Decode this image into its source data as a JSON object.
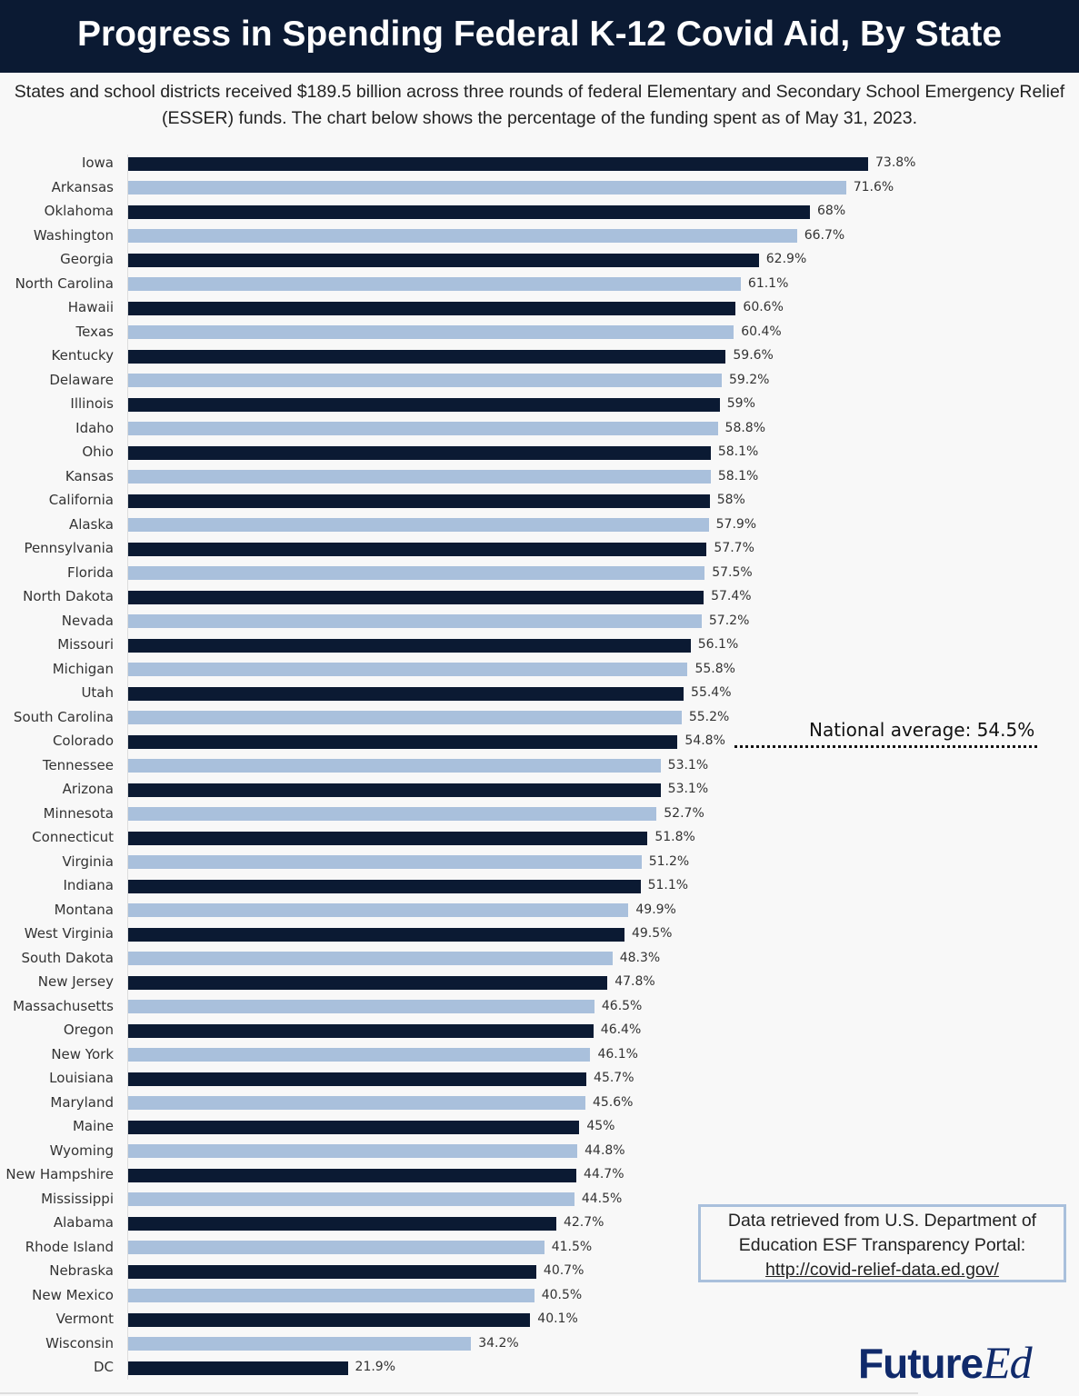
{
  "header": {
    "title": "Progress in Spending Federal K-12 Covid Aid, By State"
  },
  "subtitle": "States and school districts received $189.5 billion across three rounds of federal Elementary and Secondary School Emergency Relief (ESSER) funds. The chart below shows the percentage of the funding spent as of May 31, 2023.",
  "annotation": {
    "national_average": "National average: 54.5%",
    "value": 54.5
  },
  "source": {
    "line1": "Data retrieved from U.S. Department of",
    "line2": "Education ESF Transparency Portal:",
    "link": "http://covid-relief-data.ed.gov/"
  },
  "logo": {
    "text1": "Future",
    "text2": "Ed"
  },
  "colors": {
    "dark": "#0b1a33",
    "light": "#a9c0dc"
  },
  "chart_data": {
    "type": "bar",
    "orientation": "horizontal",
    "title": "Progress in Spending Federal K-12 Covid Aid, By State",
    "xlim": [
      0,
      80
    ],
    "grid": false,
    "categories": [
      "Iowa",
      "Arkansas",
      "Oklahoma",
      "Washington",
      "Georgia",
      "North Carolina",
      "Hawaii",
      "Texas",
      "Kentucky",
      "Delaware",
      "Illinois",
      "Idaho",
      "Ohio",
      "Kansas",
      "California",
      "Alaska",
      "Pennsylvania",
      "Florida",
      "North Dakota",
      "Nevada",
      "Missouri",
      "Michigan",
      "Utah",
      "South Carolina",
      "Colorado",
      "Tennessee",
      "Arizona",
      "Minnesota",
      "Connecticut",
      "Virginia",
      "Indiana",
      "Montana",
      "West Virginia",
      "South Dakota",
      "New Jersey",
      "Massachusetts",
      "Oregon",
      "New York",
      "Louisiana",
      "Maryland",
      "Maine",
      "Wyoming",
      "New Hampshire",
      "Mississippi",
      "Alabama",
      "Rhode Island",
      "Nebraska",
      "New Mexico",
      "Vermont",
      "Wisconsin",
      "DC"
    ],
    "values": [
      73.8,
      71.6,
      68,
      66.7,
      62.9,
      61.1,
      60.6,
      60.4,
      59.6,
      59.2,
      59,
      58.8,
      58.1,
      58.1,
      58,
      57.9,
      57.7,
      57.5,
      57.4,
      57.2,
      56.1,
      55.8,
      55.4,
      55.2,
      54.8,
      53.1,
      53.1,
      52.7,
      51.8,
      51.2,
      51.1,
      49.9,
      49.5,
      48.3,
      47.8,
      46.5,
      46.4,
      46.1,
      45.7,
      45.6,
      45,
      44.8,
      44.7,
      44.5,
      42.7,
      41.5,
      40.7,
      40.5,
      40.1,
      34.2,
      21.9
    ],
    "value_labels": [
      "73.8%",
      "71.6%",
      "68%",
      "66.7%",
      "62.9%",
      "61.1%",
      "60.6%",
      "60.4%",
      "59.6%",
      "59.2%",
      "59%",
      "58.8%",
      "58.1%",
      "58.1%",
      "58%",
      "57.9%",
      "57.7%",
      "57.5%",
      "57.4%",
      "57.2%",
      "56.1%",
      "55.8%",
      "55.4%",
      "55.2%",
      "54.8%",
      "53.1%",
      "53.1%",
      "52.7%",
      "51.8%",
      "51.2%",
      "51.1%",
      "49.9%",
      "49.5%",
      "48.3%",
      "47.8%",
      "46.5%",
      "46.4%",
      "46.1%",
      "45.7%",
      "45.6%",
      "45%",
      "44.8%",
      "44.7%",
      "44.5%",
      "42.7%",
      "41.5%",
      "40.7%",
      "40.5%",
      "40.1%",
      "34.2%",
      "21.9%"
    ]
  }
}
